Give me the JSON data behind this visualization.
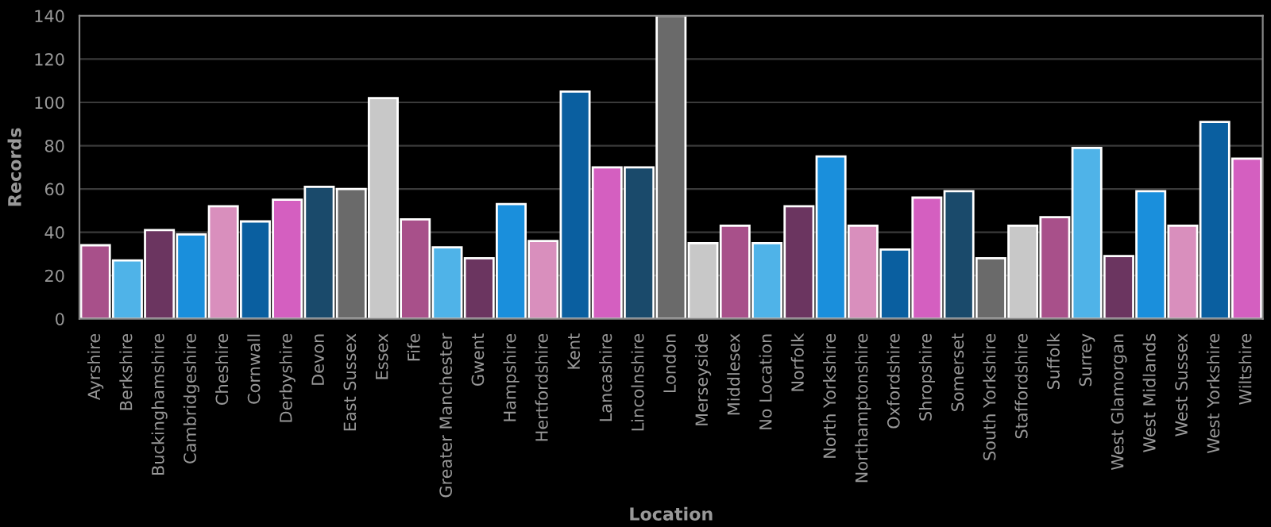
{
  "chart_data": {
    "type": "bar",
    "xlabel": "Location",
    "ylabel": "Records",
    "categories": [
      "Ayrshire",
      "Berkshire",
      "Buckinghamshire",
      "Cambridgeshire",
      "Cheshire",
      "Cornwall",
      "Derbyshire",
      "Devon",
      "East Sussex",
      "Essex",
      "Fife",
      "Greater Manchester",
      "Gwent",
      "Hampshire",
      "Hertfordshire",
      "Kent",
      "Lancashire",
      "Lincolnshire",
      "London",
      "Merseyside",
      "Middlesex",
      "No Location",
      "Norfolk",
      "North Yorkshire",
      "Northamptonshire",
      "Oxfordshire",
      "Shropshire",
      "Somerset",
      "South Yorkshire",
      "Staffordshire",
      "Suffolk",
      "Surrey",
      "West Glamorgan",
      "West Midlands",
      "West Sussex",
      "West Yorkshire",
      "Wiltshire"
    ],
    "values": [
      34,
      27,
      41,
      39,
      52,
      45,
      55,
      61,
      60,
      102,
      46,
      33,
      28,
      53,
      36,
      105,
      70,
      70,
      140,
      35,
      43,
      35,
      52,
      75,
      43,
      32,
      56,
      59,
      28,
      43,
      47,
      79,
      29,
      59,
      43,
      91,
      74
    ],
    "colors": [
      "#a8508a",
      "#4fb3e8",
      "#6b3560",
      "#1a8fdc",
      "#d98fbd",
      "#0a5fa0",
      "#d45fc0",
      "#1a4a6b",
      "#6a6a6a",
      "#c8c8c8",
      "#a8508a",
      "#4fb3e8",
      "#6b3560",
      "#1a8fdc",
      "#d98fbd",
      "#0a5fa0",
      "#d45fc0",
      "#1a4a6b",
      "#6a6a6a",
      "#c8c8c8",
      "#a8508a",
      "#4fb3e8",
      "#6b3560",
      "#1a8fdc",
      "#d98fbd",
      "#0a5fa0",
      "#d45fc0",
      "#1a4a6b",
      "#6a6a6a",
      "#c8c8c8",
      "#a8508a",
      "#4fb3e8",
      "#6b3560",
      "#1a8fdc",
      "#d98fbd",
      "#0a5fa0",
      "#d45fc0"
    ],
    "ylim": [
      0,
      140
    ],
    "yticks": [
      0,
      20,
      40,
      60,
      80,
      100,
      120,
      140
    ],
    "grid": "y"
  }
}
